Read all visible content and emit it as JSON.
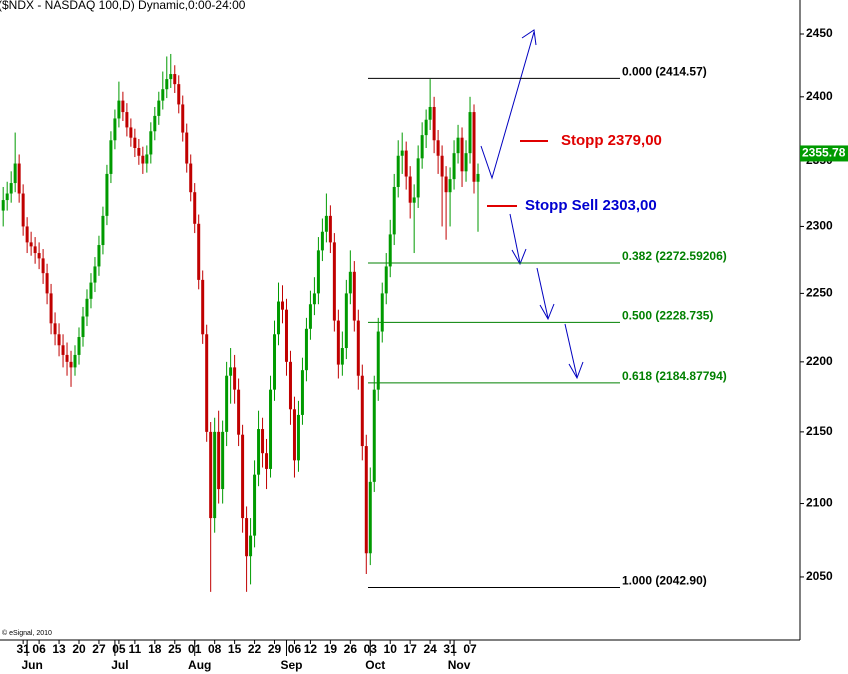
{
  "chart_data": {
    "type": "candlestick",
    "title": "($NDX - NASDAQ 100,D) Dynamic,0:00-24:00",
    "copyright": "© eSignal, 2010",
    "log_scale": true,
    "up_color": "#009a00",
    "down_color": "#c00000",
    "ylim": [
      2008,
      2477.5
    ],
    "yticks": [
      2050,
      2100,
      2150,
      2200,
      2250,
      2300,
      2350,
      2400,
      2450
    ],
    "xlim": [
      -0.8,
      199.7
    ],
    "xticks": [
      {
        "value": 5,
        "label": "31"
      },
      {
        "value": 9,
        "label": "06"
      },
      {
        "value": 14,
        "label": "13"
      },
      {
        "value": 19,
        "label": "20"
      },
      {
        "value": 24,
        "label": "27"
      },
      {
        "value": 29,
        "label": "05"
      },
      {
        "value": 33,
        "label": "11"
      },
      {
        "value": 38,
        "label": "18"
      },
      {
        "value": 43,
        "label": "25"
      },
      {
        "value": 48,
        "label": "01"
      },
      {
        "value": 53,
        "label": "08"
      },
      {
        "value": 58,
        "label": "15"
      },
      {
        "value": 63,
        "label": "22"
      },
      {
        "value": 68,
        "label": "29"
      },
      {
        "value": 73,
        "label": "06"
      },
      {
        "value": 77,
        "label": "12"
      },
      {
        "value": 82,
        "label": "19"
      },
      {
        "value": 87,
        "label": "26"
      },
      {
        "value": 92,
        "label": "03"
      },
      {
        "value": 97,
        "label": "10"
      },
      {
        "value": 102,
        "label": "17"
      },
      {
        "value": 107,
        "label": "24"
      },
      {
        "value": 112,
        "label": "31"
      },
      {
        "value": 117,
        "label": "07"
      }
    ],
    "month_ticks": [
      {
        "value": 6,
        "label": "Jun"
      },
      {
        "value": 28,
        "label": "Jul"
      },
      {
        "value": 48,
        "label": "Aug"
      },
      {
        "value": 71,
        "label": "Sep"
      },
      {
        "value": 92,
        "label": "Oct"
      },
      {
        "value": 113,
        "label": "Nov"
      }
    ],
    "open": [
      2312,
      2320,
      2325,
      2333,
      2348,
      2325,
      2300,
      2288,
      2285,
      2280,
      2276,
      2265,
      2250,
      2228,
      2220,
      2212,
      2205,
      2200,
      2196,
      2205,
      2218,
      2233,
      2246,
      2258,
      2270,
      2286,
      2308,
      2340,
      2366,
      2383,
      2397,
      2388,
      2376,
      2368,
      2360,
      2354,
      2348,
      2355,
      2373,
      2385,
      2397,
      2406,
      2414,
      2418,
      2410,
      2394,
      2372,
      2348,
      2326,
      2302,
      2260,
      2220,
      2150,
      2090,
      2150,
      2110,
      2150,
      2190,
      2196,
      2180,
      2148,
      2090,
      2064,
      2078,
      2120,
      2152,
      2135,
      2124,
      2180,
      2220,
      2244,
      2238,
      2200,
      2166,
      2130,
      2162,
      2194,
      2224,
      2242,
      2250,
      2282,
      2296,
      2308,
      2288,
      2230,
      2198,
      2210,
      2250,
      2266,
      2230,
      2190,
      2140,
      2066,
      2115,
      2180,
      2222,
      2250,
      2270,
      2294,
      2330,
      2354,
      2358,
      2338,
      2318,
      2322,
      2352,
      2370,
      2382,
      2392,
      2366,
      2354,
      2338,
      2326,
      2336,
      2356,
      2368,
      2342,
      2356,
      2388,
      2334
    ],
    "high": [
      2330,
      2334,
      2342,
      2372,
      2355,
      2332,
      2307,
      2296,
      2292,
      2288,
      2283,
      2272,
      2257,
      2236,
      2228,
      2220,
      2214,
      2208,
      2212,
      2225,
      2240,
      2253,
      2265,
      2277,
      2293,
      2315,
      2347,
      2373,
      2390,
      2412,
      2404,
      2395,
      2383,
      2375,
      2367,
      2361,
      2362,
      2380,
      2392,
      2404,
      2420,
      2432,
      2434,
      2425,
      2417,
      2401,
      2379,
      2355,
      2333,
      2309,
      2267,
      2227,
      2157,
      2160,
      2165,
      2158,
      2200,
      2210,
      2205,
      2188,
      2155,
      2098,
      2090,
      2130,
      2165,
      2160,
      2145,
      2190,
      2230,
      2258,
      2256,
      2246,
      2208,
      2175,
      2172,
      2203,
      2232,
      2252,
      2262,
      2292,
      2306,
      2325,
      2316,
      2295,
      2238,
      2222,
      2260,
      2282,
      2274,
      2238,
      2198,
      2148,
      2125,
      2190,
      2232,
      2258,
      2280,
      2305,
      2340,
      2366,
      2372,
      2365,
      2346,
      2332,
      2362,
      2380,
      2390,
      2414,
      2400,
      2374,
      2362,
      2346,
      2345,
      2366,
      2378,
      2376,
      2366,
      2400,
      2394,
      2348
    ],
    "low": [
      2300,
      2312,
      2318,
      2326,
      2318,
      2293,
      2280,
      2278,
      2272,
      2268,
      2257,
      2242,
      2220,
      2212,
      2204,
      2196,
      2190,
      2182,
      2190,
      2198,
      2211,
      2226,
      2239,
      2251,
      2263,
      2279,
      2301,
      2333,
      2359,
      2376,
      2381,
      2369,
      2361,
      2353,
      2347,
      2340,
      2341,
      2348,
      2366,
      2378,
      2390,
      2399,
      2407,
      2403,
      2387,
      2365,
      2341,
      2319,
      2295,
      2253,
      2213,
      2143,
      2040,
      2080,
      2100,
      2100,
      2140,
      2170,
      2170,
      2140,
      2080,
      2040,
      2045,
      2070,
      2112,
      2125,
      2110,
      2118,
      2172,
      2212,
      2228,
      2190,
      2155,
      2118,
      2122,
      2155,
      2186,
      2216,
      2234,
      2242,
      2274,
      2288,
      2280,
      2222,
      2188,
      2190,
      2202,
      2242,
      2222,
      2180,
      2130,
      2052,
      2058,
      2108,
      2172,
      2214,
      2242,
      2262,
      2286,
      2322,
      2340,
      2328,
      2306,
      2280,
      2314,
      2344,
      2360,
      2374,
      2356,
      2340,
      2300,
      2290,
      2300,
      2328,
      2348,
      2330,
      2334,
      2348,
      2325,
      2296
    ],
    "close": [
      2320,
      2325,
      2333,
      2348,
      2325,
      2300,
      2288,
      2285,
      2280,
      2276,
      2265,
      2250,
      2228,
      2220,
      2212,
      2205,
      2200,
      2196,
      2205,
      2218,
      2233,
      2246,
      2258,
      2270,
      2286,
      2308,
      2340,
      2366,
      2383,
      2397,
      2388,
      2376,
      2368,
      2360,
      2354,
      2348,
      2355,
      2373,
      2385,
      2397,
      2406,
      2414,
      2418,
      2410,
      2394,
      2372,
      2348,
      2326,
      2302,
      2260,
      2220,
      2150,
      2090,
      2150,
      2110,
      2150,
      2190,
      2196,
      2180,
      2148,
      2090,
      2064,
      2078,
      2120,
      2152,
      2135,
      2124,
      2180,
      2220,
      2244,
      2238,
      2200,
      2166,
      2130,
      2162,
      2194,
      2224,
      2242,
      2250,
      2282,
      2296,
      2308,
      2288,
      2230,
      2198,
      2210,
      2250,
      2266,
      2230,
      2190,
      2140,
      2066,
      2115,
      2180,
      2222,
      2250,
      2270,
      2294,
      2330,
      2354,
      2358,
      2338,
      2318,
      2322,
      2352,
      2370,
      2382,
      2392,
      2366,
      2354,
      2338,
      2326,
      2336,
      2356,
      2368,
      2342,
      2356,
      2388,
      2334,
      2340
    ],
    "last_price": 2355.78,
    "last_price_color": "#009a00",
    "fib_levels": [
      {
        "value": 2414.57,
        "label": "0.000 (2414.57)",
        "color": "#000000"
      },
      {
        "value": 2272.59206,
        "label": "0.382 (2272.59206)",
        "color": "#008000"
      },
      {
        "value": 2228.735,
        "label": "0.500 (2228.735)",
        "color": "#008000"
      },
      {
        "value": 2184.87794,
        "label": "0.618 (2184.87794)",
        "color": "#008000"
      },
      {
        "value": 2042.9,
        "label": "1.000 (2042.90)",
        "color": "#000000"
      }
    ],
    "annotations": [
      {
        "text": "Stopp 2379,00",
        "color": "#e00000"
      },
      {
        "text": "Stopp Sell 2303,00",
        "color": "#0000d0"
      }
    ]
  }
}
